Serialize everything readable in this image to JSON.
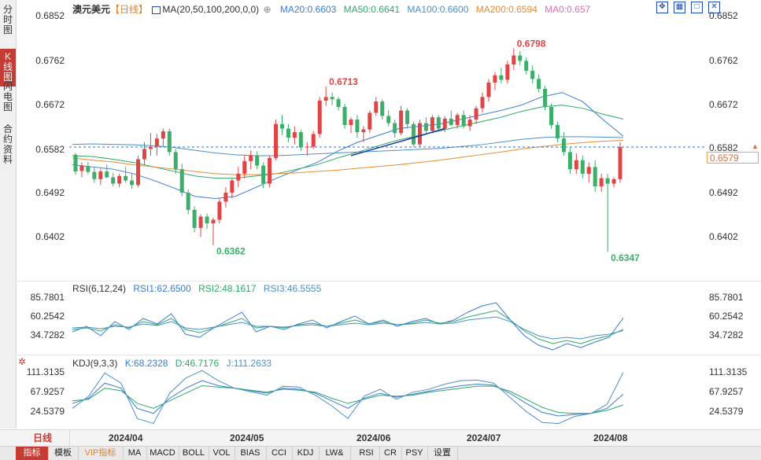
{
  "tabs": [
    "分时图",
    "K线图",
    "闪电图",
    "合约资料"
  ],
  "active_tab": 1,
  "symbol": "澳元美元",
  "period_tag": "【日线】",
  "ma_legend": [
    {
      "label": "MA(20,50,100,200,0,0)",
      "color": "#333333"
    },
    {
      "label": "MA20:0.6603",
      "color": "#3a7bd5"
    },
    {
      "label": "MA50:0.6641",
      "color": "#2fa86b"
    },
    {
      "label": "MA100:0.6600",
      "color": "#4a90c8"
    },
    {
      "label": "MA200:0.6594",
      "color": "#e8892f"
    },
    {
      "label": "MA0:0.657",
      "color": "#d86fb8"
    }
  ],
  "price_axis": [
    "0.6852",
    "0.6762",
    "0.6672",
    "0.6582",
    "0.6492",
    "0.6402"
  ],
  "current_price": "0.6579",
  "annotations": {
    "high1": "0.6713",
    "high2": "0.6798",
    "low1": "0.6362",
    "low2": "0.6347"
  },
  "rsi": {
    "title": "RSI(6,12,24)",
    "values": [
      "RSI1:62.6500",
      "RSI2:48.1617",
      "RSI3:46.5555"
    ],
    "axis": [
      "85.7801",
      "60.2542",
      "34.7282"
    ]
  },
  "kdj": {
    "title": "KDJ(9,3,3)",
    "values": [
      "K:68.2328",
      "D:46.7176",
      "J:111.2633"
    ],
    "axis": [
      "111.3135",
      "67.9257",
      "24.5379"
    ]
  },
  "period_label": "日线",
  "date_labels": [
    "2024/04",
    "2024/05",
    "2024/06",
    "2024/07",
    "2024/08"
  ],
  "toolbar": [
    "指标",
    "模板",
    "VIP指标",
    "MA",
    "MACD",
    "BOLL",
    "VOL",
    "BIAS",
    "CCI",
    "KDJ",
    "LW&",
    "RSI",
    "CR",
    "PSY",
    "设置"
  ],
  "window_icons": [
    "fullscreen-icon",
    "grid-icon",
    "maximize-icon",
    "close-icon"
  ],
  "colors": {
    "up": "#e04545",
    "down": "#3cae6a",
    "ma20": "#3a7bd5",
    "ma50": "#2fa86b",
    "ma100": "#4a90c8",
    "ma200": "#e8892f",
    "accent": "#c43c33"
  },
  "chart_data": {
    "type": "candlestick",
    "title": "澳元美元【日线】",
    "ylim": [
      0.633,
      0.687
    ],
    "candles_ohlc": [
      [
        0.6562,
        0.6566,
        0.6518,
        0.6525
      ],
      [
        0.6526,
        0.6545,
        0.6512,
        0.6538
      ],
      [
        0.6537,
        0.6546,
        0.6519,
        0.6524
      ],
      [
        0.6524,
        0.6535,
        0.65,
        0.6508
      ],
      [
        0.6508,
        0.6531,
        0.6495,
        0.6525
      ],
      [
        0.6525,
        0.654,
        0.651,
        0.6512
      ],
      [
        0.6512,
        0.6522,
        0.6492,
        0.6498
      ],
      [
        0.6498,
        0.652,
        0.649,
        0.6515
      ],
      [
        0.6515,
        0.6535,
        0.65,
        0.6505
      ],
      [
        0.6505,
        0.652,
        0.6486,
        0.6495
      ],
      [
        0.6495,
        0.656,
        0.649,
        0.6552
      ],
      [
        0.6552,
        0.659,
        0.654,
        0.6575
      ],
      [
        0.6575,
        0.661,
        0.656,
        0.658
      ],
      [
        0.658,
        0.6608,
        0.656,
        0.6598
      ],
      [
        0.6598,
        0.662,
        0.658,
        0.6614
      ],
      [
        0.6614,
        0.662,
        0.656,
        0.6568
      ],
      [
        0.6568,
        0.6575,
        0.652,
        0.653
      ],
      [
        0.653,
        0.6542,
        0.647,
        0.6478
      ],
      [
        0.6478,
        0.6485,
        0.643,
        0.644
      ],
      [
        0.644,
        0.6448,
        0.639,
        0.64
      ],
      [
        0.64,
        0.643,
        0.638,
        0.6425
      ],
      [
        0.6425,
        0.6432,
        0.6398,
        0.641
      ],
      [
        0.641,
        0.6422,
        0.6362,
        0.6418
      ],
      [
        0.6418,
        0.6465,
        0.641,
        0.6458
      ],
      [
        0.6458,
        0.649,
        0.6445,
        0.6478
      ],
      [
        0.6478,
        0.651,
        0.6465,
        0.6505
      ],
      [
        0.6505,
        0.6535,
        0.649,
        0.652
      ],
      [
        0.652,
        0.656,
        0.651,
        0.6548
      ],
      [
        0.6548,
        0.6572,
        0.653,
        0.656
      ],
      [
        0.656,
        0.657,
        0.653,
        0.6538
      ],
      [
        0.6538,
        0.6545,
        0.6488,
        0.6498
      ],
      [
        0.6498,
        0.656,
        0.649,
        0.6555
      ],
      [
        0.6555,
        0.664,
        0.655,
        0.663
      ],
      [
        0.663,
        0.665,
        0.6605,
        0.662
      ],
      [
        0.662,
        0.663,
        0.659,
        0.66
      ],
      [
        0.66,
        0.6625,
        0.6585,
        0.6612
      ],
      [
        0.6612,
        0.6618,
        0.657,
        0.6578
      ],
      [
        0.6578,
        0.659,
        0.656,
        0.658
      ],
      [
        0.658,
        0.6615,
        0.6575,
        0.6608
      ],
      [
        0.6608,
        0.669,
        0.66,
        0.6682
      ],
      [
        0.6682,
        0.6713,
        0.667,
        0.669
      ],
      [
        0.669,
        0.67,
        0.6672,
        0.6685
      ],
      [
        0.6685,
        0.669,
        0.666,
        0.6668
      ],
      [
        0.6668,
        0.6675,
        0.662,
        0.6628
      ],
      [
        0.6628,
        0.6645,
        0.661,
        0.664
      ],
      [
        0.664,
        0.665,
        0.66,
        0.6612
      ],
      [
        0.6612,
        0.6625,
        0.659,
        0.6618
      ],
      [
        0.6618,
        0.666,
        0.661,
        0.6655
      ],
      [
        0.6655,
        0.669,
        0.6648,
        0.668
      ],
      [
        0.668,
        0.6685,
        0.664,
        0.6648
      ],
      [
        0.6648,
        0.666,
        0.6625,
        0.6632
      ],
      [
        0.6632,
        0.664,
        0.66,
        0.661
      ],
      [
        0.661,
        0.667,
        0.6605,
        0.666
      ],
      [
        0.666,
        0.6665,
        0.662,
        0.663
      ],
      [
        0.663,
        0.6635,
        0.658,
        0.6585
      ],
      [
        0.6585,
        0.664,
        0.658,
        0.6632
      ],
      [
        0.6632,
        0.6645,
        0.661,
        0.6615
      ],
      [
        0.6615,
        0.665,
        0.661,
        0.6645
      ],
      [
        0.6645,
        0.665,
        0.6615,
        0.662
      ],
      [
        0.662,
        0.6648,
        0.6612,
        0.6642
      ],
      [
        0.6642,
        0.666,
        0.6625,
        0.6628
      ],
      [
        0.6628,
        0.6655,
        0.662,
        0.665
      ],
      [
        0.665,
        0.666,
        0.662,
        0.6625
      ],
      [
        0.6625,
        0.665,
        0.6615,
        0.664
      ],
      [
        0.664,
        0.667,
        0.663,
        0.6665
      ],
      [
        0.6665,
        0.67,
        0.6655,
        0.669
      ],
      [
        0.669,
        0.673,
        0.668,
        0.6722
      ],
      [
        0.6722,
        0.6745,
        0.6705,
        0.6738
      ],
      [
        0.6738,
        0.6755,
        0.672,
        0.6728
      ],
      [
        0.6728,
        0.677,
        0.672,
        0.6762
      ],
      [
        0.6762,
        0.6798,
        0.675,
        0.6782
      ],
      [
        0.6782,
        0.6792,
        0.676,
        0.677
      ],
      [
        0.677,
        0.6778,
        0.674,
        0.6748
      ],
      [
        0.6748,
        0.676,
        0.672,
        0.673
      ],
      [
        0.673,
        0.674,
        0.67,
        0.6708
      ],
      [
        0.6708,
        0.6715,
        0.666,
        0.6668
      ],
      [
        0.6668,
        0.6675,
        0.662,
        0.6628
      ],
      [
        0.6628,
        0.6635,
        0.659,
        0.6598
      ],
      [
        0.6598,
        0.6612,
        0.656,
        0.6568
      ],
      [
        0.6568,
        0.658,
        0.652,
        0.653
      ],
      [
        0.653,
        0.6565,
        0.652,
        0.655
      ],
      [
        0.655,
        0.656,
        0.651,
        0.652
      ],
      [
        0.652,
        0.6545,
        0.65,
        0.6535
      ],
      [
        0.6535,
        0.655,
        0.648,
        0.6492
      ],
      [
        0.6492,
        0.652,
        0.648,
        0.651
      ],
      [
        0.651,
        0.652,
        0.6347,
        0.6498
      ],
      [
        0.6498,
        0.6512,
        0.649,
        0.6508
      ],
      [
        0.6508,
        0.659,
        0.65,
        0.6579
      ]
    ],
    "ma": {
      "MA20": [
        0.654,
        0.6535,
        0.653,
        0.652,
        0.6505,
        0.6488,
        0.647,
        0.6465,
        0.647,
        0.649,
        0.651,
        0.6528,
        0.6545,
        0.657,
        0.659,
        0.6605,
        0.662,
        0.6625,
        0.663,
        0.664,
        0.665,
        0.666,
        0.6672,
        0.669,
        0.67,
        0.668,
        0.664,
        0.6603
      ],
      "MA50": [
        0.656,
        0.6558,
        0.6552,
        0.6545,
        0.6535,
        0.6525,
        0.6515,
        0.651,
        0.651,
        0.6515,
        0.652,
        0.653,
        0.654,
        0.6555,
        0.6568,
        0.6582,
        0.6595,
        0.6605,
        0.6615,
        0.6625,
        0.6635,
        0.6645,
        0.6658,
        0.6668,
        0.6672,
        0.6665,
        0.6652,
        0.6641
      ],
      "MA100": [
        0.6585,
        0.6586,
        0.6585,
        0.6584,
        0.6582,
        0.6578,
        0.6572,
        0.6566,
        0.6562,
        0.656,
        0.656,
        0.6562,
        0.6564,
        0.6566,
        0.6568,
        0.657,
        0.6572,
        0.6574,
        0.6576,
        0.658,
        0.6584,
        0.659,
        0.6596,
        0.66,
        0.6602,
        0.6602,
        0.6601,
        0.66
      ],
      "MA200": [
        0.6555,
        0.655,
        0.6546,
        0.654,
        0.6535,
        0.653,
        0.6525,
        0.652,
        0.6518,
        0.6518,
        0.652,
        0.6522,
        0.6525,
        0.6528,
        0.6532,
        0.6536,
        0.654,
        0.6545,
        0.655,
        0.6556,
        0.6562,
        0.6568,
        0.6575,
        0.658,
        0.6585,
        0.6589,
        0.6592,
        0.6594
      ]
    },
    "trendline": [
      [
        0.656,
        0.658
      ],
      [
        0.661,
        0.662
      ]
    ],
    "dashed_line": 0.6579,
    "x_tick_labels": [
      "2024/04",
      "2024/05",
      "2024/06",
      "2024/07",
      "2024/08"
    ],
    "rsi_series": {
      "RSI1": [
        45,
        52,
        40,
        58,
        48,
        62,
        55,
        68,
        42,
        38,
        50,
        60,
        70,
        45,
        52,
        48,
        55,
        60,
        50,
        58,
        65,
        55,
        60,
        52,
        58,
        62,
        55,
        60,
        70,
        78,
        82,
        60,
        40,
        28,
        22,
        30,
        25,
        32,
        38,
        62.65
      ],
      "RSI2": [
        48,
        50,
        46,
        54,
        50,
        58,
        54,
        62,
        48,
        44,
        50,
        56,
        62,
        50,
        52,
        50,
        54,
        56,
        52,
        56,
        60,
        55,
        58,
        54,
        56,
        60,
        56,
        58,
        64,
        68,
        72,
        60,
        46,
        36,
        30,
        34,
        30,
        36,
        40,
        48.16
      ],
      "RSI3": [
        50,
        51,
        49,
        52,
        51,
        55,
        53,
        58,
        50,
        48,
        51,
        54,
        57,
        52,
        52,
        51,
        53,
        54,
        52,
        54,
        56,
        54,
        56,
        54,
        55,
        57,
        55,
        56,
        60,
        62,
        64,
        58,
        48,
        40,
        36,
        38,
        36,
        40,
        42,
        46.56
      ],
      "ylim": [
        15,
        95
      ]
    },
    "kdj_series": {
      "K": [
        50,
        60,
        90,
        80,
        40,
        30,
        60,
        80,
        95,
        85,
        80,
        75,
        70,
        80,
        78,
        70,
        55,
        40,
        60,
        70,
        62,
        68,
        74,
        80,
        85,
        88,
        86,
        70,
        50,
        32,
        25,
        28,
        30,
        40,
        68.23
      ],
      "D": [
        55,
        58,
        80,
        75,
        50,
        40,
        55,
        70,
        85,
        82,
        80,
        76,
        72,
        78,
        76,
        72,
        60,
        50,
        58,
        66,
        64,
        66,
        72,
        76,
        80,
        84,
        84,
        74,
        58,
        42,
        32,
        30,
        30,
        36,
        46.72
      ],
      "J": [
        40,
        64,
        110,
        90,
        20,
        10,
        70,
        100,
        115,
        95,
        80,
        73,
        66,
        84,
        82,
        66,
        45,
        20,
        64,
        78,
        58,
        72,
        78,
        88,
        95,
        96,
        90,
        62,
        34,
        12,
        10,
        24,
        30,
        48,
        111.26
      ],
      "ylim": [
        0,
        120
      ]
    }
  }
}
